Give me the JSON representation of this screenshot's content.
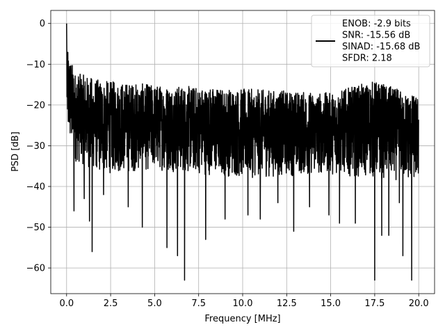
{
  "chart_data": {
    "type": "line",
    "title": "",
    "xlabel": "Frequency [MHz]",
    "ylabel": "PSD [dB]",
    "xlim": [
      -0.9,
      20.9
    ],
    "ylim": [
      -66.3,
      3.2
    ],
    "grid": true,
    "legend_position": "top-right",
    "x_ticks": [
      0.0,
      2.5,
      5.0,
      7.5,
      10.0,
      12.5,
      15.0,
      17.5,
      20.0
    ],
    "x_tick_labels": [
      "0.0",
      "2.5",
      "5.0",
      "7.5",
      "10.0",
      "12.5",
      "15.0",
      "17.5",
      "20.0"
    ],
    "y_ticks": [
      0,
      -10,
      -20,
      -30,
      -40,
      -50,
      -60
    ],
    "y_tick_labels": [
      "0",
      "−10",
      "−20",
      "−30",
      "−40",
      "−50",
      "−60"
    ],
    "line_color": "#000000",
    "series": [
      {
        "name": "ENOB: -2.9 bits\nSNR: -15.56 dB\nSINAD: -15.68 dB\nSFDR: 2.18",
        "x_range": [
          0,
          20
        ],
        "peak": {
          "x": 0.0,
          "y": 0.0
        },
        "upper_envelope": [
          [
            0.1,
            -7
          ],
          [
            0.5,
            -12
          ],
          [
            2,
            -14
          ],
          [
            5,
            -15
          ],
          [
            10,
            -16
          ],
          [
            15,
            -17
          ],
          [
            17.5,
            -14
          ],
          [
            20,
            -18
          ]
        ],
        "lower_envelope": [
          [
            0.1,
            -29
          ],
          [
            0.5,
            -34
          ],
          [
            2,
            -37
          ],
          [
            5,
            -36
          ],
          [
            10,
            -38
          ],
          [
            15,
            -37
          ],
          [
            20,
            -39
          ]
        ],
        "deep_minima": [
          {
            "x": 0.42,
            "y": -46
          },
          {
            "x": 1.0,
            "y": -43
          },
          {
            "x": 1.3,
            "y": -48.5
          },
          {
            "x": 1.45,
            "y": -56
          },
          {
            "x": 2.1,
            "y": -42
          },
          {
            "x": 3.5,
            "y": -45
          },
          {
            "x": 4.3,
            "y": -50
          },
          {
            "x": 5.7,
            "y": -55
          },
          {
            "x": 6.3,
            "y": -57
          },
          {
            "x": 6.7,
            "y": -63
          },
          {
            "x": 7.9,
            "y": -53
          },
          {
            "x": 9.0,
            "y": -48
          },
          {
            "x": 10.3,
            "y": -47
          },
          {
            "x": 11.0,
            "y": -48
          },
          {
            "x": 12.0,
            "y": -44
          },
          {
            "x": 12.9,
            "y": -51
          },
          {
            "x": 13.8,
            "y": -45
          },
          {
            "x": 14.9,
            "y": -47
          },
          {
            "x": 15.5,
            "y": -49
          },
          {
            "x": 16.4,
            "y": -49
          },
          {
            "x": 17.5,
            "y": -63
          },
          {
            "x": 17.9,
            "y": -52
          },
          {
            "x": 18.3,
            "y": -52
          },
          {
            "x": 18.9,
            "y": -44
          },
          {
            "x": 19.1,
            "y": -57
          },
          {
            "x": 19.6,
            "y": -63
          }
        ]
      }
    ]
  }
}
